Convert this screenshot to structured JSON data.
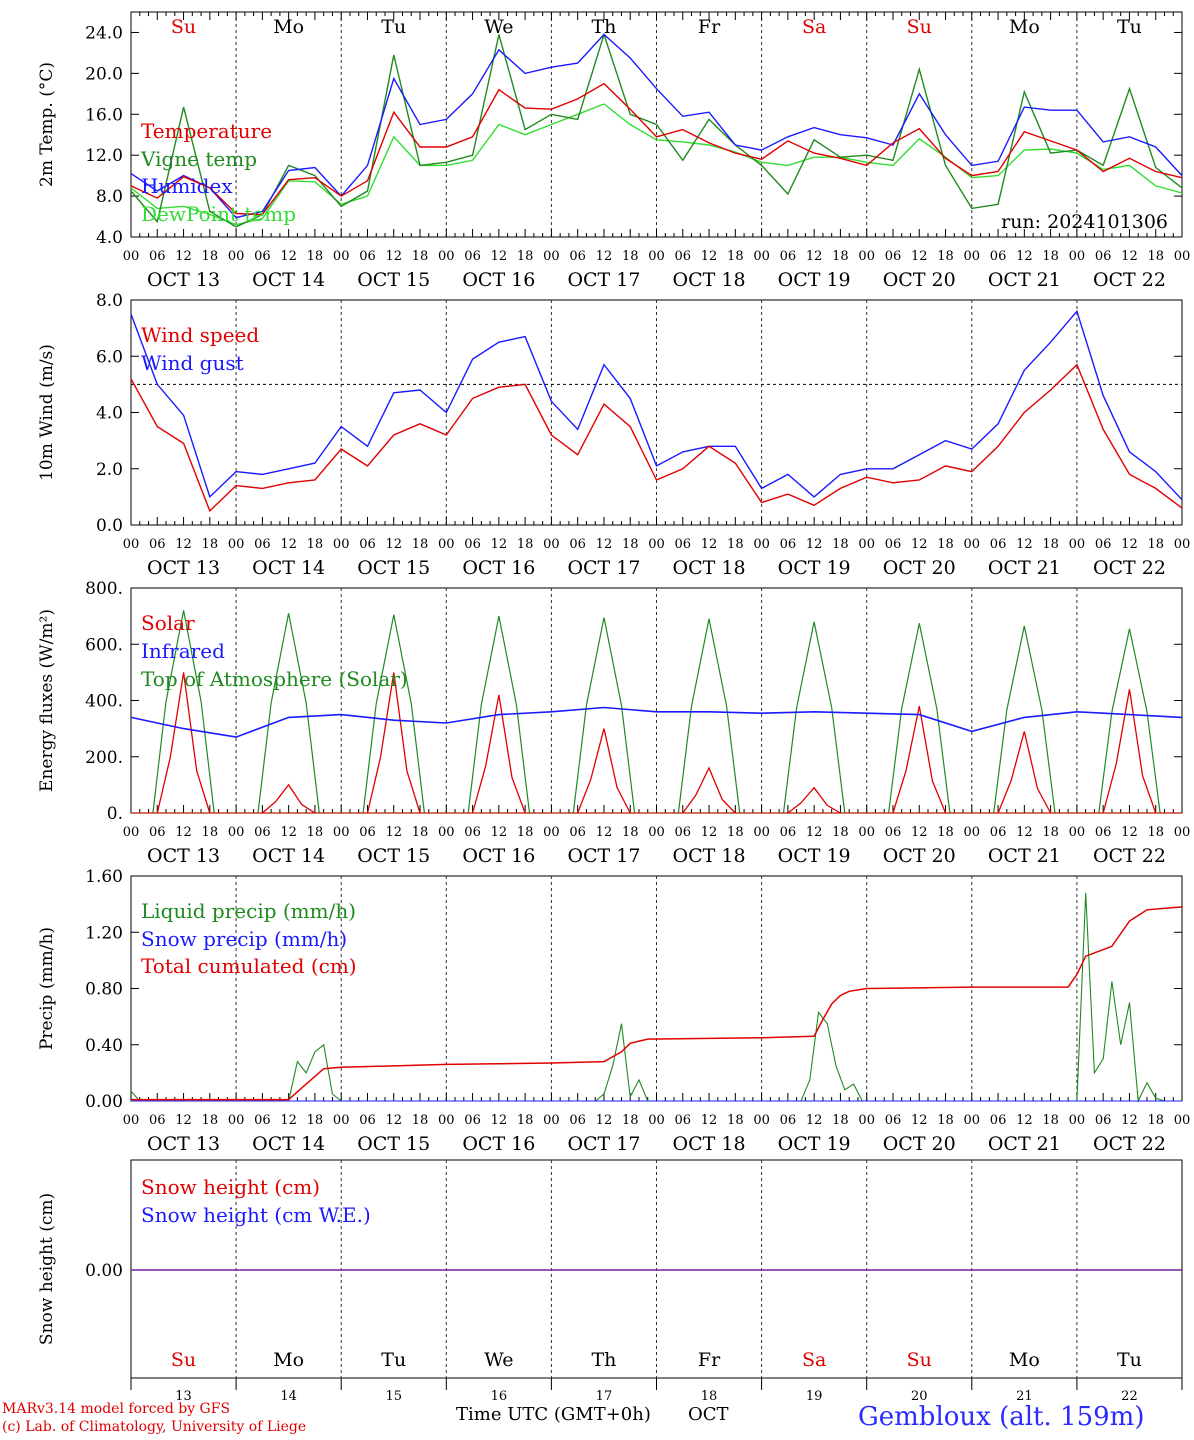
{
  "footer": {
    "model_line": "MARv3.14 model forced by GFS",
    "credit_line": "(c) Lab. of Climatology, University of Liege",
    "time_axis_label": "Time UTC (GMT+0h)",
    "month_label": "OCT",
    "station": "Gembloux (alt. 159m)"
  },
  "run_label": "run: 2024101306",
  "colors": {
    "red": "#e00000",
    "blue": "#1a1aff",
    "dark_green": "#1f8a1f",
    "light_green": "#33dd33",
    "purple": "#7a1f9a"
  },
  "days": [
    {
      "weekday": "Su",
      "date": "13",
      "label": "OCT 13",
      "weekend": true
    },
    {
      "weekday": "Mo",
      "date": "14",
      "label": "OCT 14",
      "weekend": false
    },
    {
      "weekday": "Tu",
      "date": "15",
      "label": "OCT 15",
      "weekend": false
    },
    {
      "weekday": "We",
      "date": "16",
      "label": "OCT 16",
      "weekend": false
    },
    {
      "weekday": "Th",
      "date": "17",
      "label": "OCT 17",
      "weekend": false
    },
    {
      "weekday": "Fr",
      "date": "18",
      "label": "OCT 18",
      "weekend": false
    },
    {
      "weekday": "Sa",
      "date": "19",
      "label": "OCT 19",
      "weekend": true
    },
    {
      "weekday": "Su",
      "date": "20",
      "label": "OCT 20",
      "weekend": true
    },
    {
      "weekday": "Mo",
      "date": "21",
      "label": "OCT 21",
      "weekend": false
    },
    {
      "weekday": "Tu",
      "date": "22",
      "label": "OCT 22",
      "weekend": false
    }
  ],
  "hour_labels": [
    "00",
    "06",
    "12",
    "18"
  ],
  "chart_data": [
    {
      "type": "line",
      "ylabel": "2m Temp. (°C)",
      "ylim": [
        4.0,
        26.0
      ],
      "yticks": [
        "4.0",
        "8.0",
        "12.0",
        "16.0",
        "20.0",
        "24.0"
      ],
      "xlim_hours": [
        0,
        240
      ],
      "series": [
        {
          "name": "Temperature",
          "color": "red",
          "x": [
            0,
            6,
            12,
            18,
            24,
            30,
            36,
            42,
            48,
            54,
            60,
            66,
            72,
            78,
            84,
            90,
            96,
            102,
            108,
            114,
            120,
            126,
            132,
            138,
            144,
            150,
            156,
            162,
            168,
            174,
            180,
            186,
            192,
            198,
            204,
            210,
            216,
            222,
            228,
            234,
            240
          ],
          "values": [
            9.0,
            7.8,
            9.9,
            8.8,
            6.3,
            6.2,
            9.6,
            9.8,
            8.0,
            9.5,
            16.2,
            12.8,
            12.8,
            13.8,
            18.4,
            16.6,
            16.5,
            17.5,
            19.0,
            16.5,
            13.8,
            14.5,
            13.2,
            12.2,
            11.6,
            13.4,
            12.2,
            11.7,
            11.0,
            13.2,
            14.6,
            11.7,
            10.0,
            10.4,
            14.3,
            13.4,
            12.5,
            10.4,
            11.7,
            10.4,
            9.8
          ]
        },
        {
          "name": "Vigne temp",
          "color": "dark_green",
          "x": [
            0,
            6,
            12,
            18,
            24,
            30,
            36,
            42,
            48,
            54,
            60,
            66,
            72,
            78,
            84,
            90,
            96,
            102,
            108,
            114,
            120,
            126,
            132,
            138,
            144,
            150,
            156,
            162,
            168,
            174,
            180,
            186,
            192,
            198,
            204,
            210,
            216,
            222,
            228,
            234,
            240
          ],
          "values": [
            8.5,
            5.5,
            16.7,
            6.5,
            5.0,
            6.2,
            11.0,
            10.0,
            7.0,
            8.5,
            21.8,
            11.0,
            11.3,
            12.0,
            23.8,
            14.5,
            16.0,
            15.5,
            23.8,
            16.0,
            15.0,
            11.5,
            15.5,
            13.0,
            11.0,
            8.2,
            13.5,
            11.8,
            12.0,
            11.5,
            20.4,
            11.0,
            6.8,
            7.2,
            18.2,
            12.2,
            12.5,
            11.0,
            18.5,
            10.8,
            8.8
          ]
        },
        {
          "name": "Humidex",
          "color": "blue",
          "x": [
            0,
            6,
            12,
            18,
            24,
            30,
            36,
            42,
            48,
            54,
            60,
            66,
            72,
            78,
            84,
            90,
            96,
            102,
            108,
            114,
            120,
            126,
            132,
            138,
            144,
            150,
            156,
            162,
            168,
            174,
            180,
            186,
            192,
            198,
            204,
            210,
            216,
            222,
            228,
            234,
            240
          ],
          "values": [
            10.2,
            8.5,
            10.0,
            8.8,
            5.9,
            6.5,
            10.5,
            10.8,
            8.0,
            11.0,
            19.5,
            15.0,
            15.5,
            18.0,
            22.3,
            20.0,
            20.6,
            21.0,
            23.8,
            21.5,
            18.5,
            15.8,
            16.2,
            13.0,
            12.5,
            13.8,
            14.7,
            14.0,
            13.7,
            13.0,
            18.0,
            14.0,
            11.0,
            11.4,
            16.7,
            16.4,
            16.4,
            13.3,
            13.8,
            12.8,
            10.0
          ]
        },
        {
          "name": "DewPoint temp",
          "color": "light_green",
          "x": [
            0,
            6,
            12,
            18,
            24,
            30,
            36,
            42,
            48,
            54,
            60,
            66,
            72,
            78,
            84,
            90,
            96,
            102,
            108,
            114,
            120,
            126,
            132,
            138,
            144,
            150,
            156,
            162,
            168,
            174,
            180,
            186,
            192,
            198,
            204,
            210,
            216,
            222,
            228,
            234,
            240
          ],
          "values": [
            8.8,
            6.8,
            7.0,
            6.2,
            5.2,
            5.8,
            9.5,
            9.4,
            7.2,
            8.0,
            13.8,
            11.0,
            11.0,
            11.5,
            15.0,
            14.0,
            15.0,
            16.0,
            17.0,
            15.0,
            13.5,
            13.3,
            13.0,
            12.3,
            11.3,
            11.0,
            11.8,
            11.8,
            11.3,
            11.0,
            13.6,
            11.8,
            9.8,
            10.0,
            12.5,
            12.6,
            12.2,
            10.6,
            11.0,
            9.0,
            8.3
          ]
        }
      ],
      "annotation": "run: 2024101306"
    },
    {
      "type": "line",
      "ylabel": "10m Wind (m/s)",
      "ylim": [
        0.0,
        8.0
      ],
      "yticks": [
        "0.0",
        "2.0",
        "4.0",
        "6.0",
        "8.0"
      ],
      "reference_line": 5.0,
      "series": [
        {
          "name": "Wind speed",
          "color": "red",
          "x": [
            0,
            6,
            12,
            18,
            24,
            30,
            36,
            42,
            48,
            54,
            60,
            66,
            72,
            78,
            84,
            90,
            96,
            102,
            108,
            114,
            120,
            126,
            132,
            138,
            144,
            150,
            156,
            162,
            168,
            174,
            180,
            186,
            192,
            198,
            204,
            210,
            216,
            222,
            228,
            234,
            240
          ],
          "values": [
            5.2,
            3.5,
            2.9,
            0.5,
            1.4,
            1.3,
            1.5,
            1.6,
            2.7,
            2.1,
            3.2,
            3.6,
            3.2,
            4.5,
            4.9,
            5.0,
            3.2,
            2.5,
            4.3,
            3.5,
            1.6,
            2.0,
            2.8,
            2.2,
            0.8,
            1.1,
            0.7,
            1.3,
            1.7,
            1.5,
            1.6,
            2.1,
            1.9,
            2.8,
            4.0,
            4.8,
            5.7,
            3.4,
            1.8,
            1.3,
            0.6
          ]
        },
        {
          "name": "Wind gust",
          "color": "blue",
          "x": [
            0,
            6,
            12,
            18,
            24,
            30,
            36,
            42,
            48,
            54,
            60,
            66,
            72,
            78,
            84,
            90,
            96,
            102,
            108,
            114,
            120,
            126,
            132,
            138,
            144,
            150,
            156,
            162,
            168,
            174,
            180,
            186,
            192,
            198,
            204,
            210,
            216,
            222,
            228,
            234,
            240
          ],
          "values": [
            7.5,
            5.0,
            3.9,
            1.0,
            1.9,
            1.8,
            2.0,
            2.2,
            3.5,
            2.8,
            4.7,
            4.8,
            4.0,
            5.9,
            6.5,
            6.7,
            4.4,
            3.4,
            5.7,
            4.5,
            2.1,
            2.6,
            2.8,
            2.8,
            1.3,
            1.8,
            1.0,
            1.8,
            2.0,
            2.0,
            2.5,
            3.0,
            2.7,
            3.6,
            5.5,
            6.5,
            7.6,
            4.6,
            2.6,
            1.9,
            0.9
          ]
        }
      ]
    },
    {
      "type": "line",
      "ylabel": "Energy fluxes (W/m²)",
      "ylim": [
        0,
        800
      ],
      "yticks": [
        "0.",
        "200.",
        "400.",
        "600.",
        "800."
      ],
      "series": [
        {
          "name": "Solar",
          "color": "red",
          "daily_peaks": [
            500,
            100,
            500,
            420,
            300,
            160,
            90,
            380,
            290,
            440
          ]
        },
        {
          "name": "Infrared",
          "color": "blue",
          "x": [
            0,
            12,
            24,
            36,
            48,
            60,
            72,
            84,
            96,
            108,
            120,
            132,
            144,
            156,
            168,
            180,
            192,
            204,
            216,
            228,
            240
          ],
          "values": [
            340,
            300,
            270,
            340,
            350,
            330,
            320,
            350,
            360,
            375,
            360,
            360,
            355,
            360,
            355,
            350,
            290,
            340,
            360,
            350,
            340
          ]
        },
        {
          "name": "Top of Atmosphere (Solar)",
          "color": "dark_green",
          "daily_peaks": [
            720,
            710,
            705,
            700,
            695,
            690,
            680,
            675,
            665,
            655
          ]
        }
      ]
    },
    {
      "type": "line",
      "ylabel": "Precip (mm/h)",
      "ylim": [
        0.0,
        1.6
      ],
      "yticks": [
        "0.00",
        "0.40",
        "0.80",
        "1.20",
        "1.60"
      ],
      "series": [
        {
          "name": "Liquid precip (mm/h)",
          "color": "dark_green",
          "x": [
            0,
            2,
            36,
            38,
            40,
            42,
            44,
            46,
            48,
            106,
            108,
            110,
            112,
            114,
            116,
            118,
            153,
            155,
            157,
            159,
            161,
            163,
            165,
            167,
            216,
            218,
            220,
            222,
            224,
            226,
            228,
            230,
            232,
            234,
            236
          ],
          "values": [
            0.07,
            0.0,
            0.0,
            0.28,
            0.2,
            0.35,
            0.4,
            0.05,
            0.0,
            0.0,
            0.05,
            0.25,
            0.55,
            0.03,
            0.15,
            0.0,
            0.0,
            0.15,
            0.63,
            0.55,
            0.25,
            0.08,
            0.12,
            0.0,
            0.0,
            1.48,
            0.2,
            0.3,
            0.85,
            0.4,
            0.7,
            0.0,
            0.13,
            0.02,
            0.0
          ]
        },
        {
          "name": "Snow precip (mm/h)",
          "color": "blue",
          "x": [
            0,
            240
          ],
          "values": [
            0,
            0
          ]
        },
        {
          "name": "Total cumulated (cm)",
          "color": "red",
          "x": [
            0,
            36,
            40,
            44,
            48,
            72,
            96,
            108,
            112,
            114,
            118,
            144,
            156,
            158,
            160,
            162,
            164,
            168,
            192,
            214,
            216,
            218,
            224,
            228,
            232,
            240
          ],
          "values": [
            0.01,
            0.01,
            0.12,
            0.23,
            0.24,
            0.26,
            0.27,
            0.28,
            0.35,
            0.41,
            0.44,
            0.45,
            0.46,
            0.58,
            0.69,
            0.75,
            0.78,
            0.8,
            0.81,
            0.81,
            0.9,
            1.03,
            1.1,
            1.28,
            1.36,
            1.38
          ]
        }
      ]
    },
    {
      "type": "line",
      "ylabel": "Snow height (cm)",
      "yticks": [
        "0.00"
      ],
      "series": [
        {
          "name": "Snow height (cm)",
          "color": "red",
          "x": [
            0,
            240
          ],
          "values": [
            0,
            0
          ]
        },
        {
          "name": "Snow height (cm W.E.)",
          "color": "blue",
          "x": [
            0,
            240
          ],
          "values": [
            0,
            0
          ]
        }
      ]
    }
  ]
}
